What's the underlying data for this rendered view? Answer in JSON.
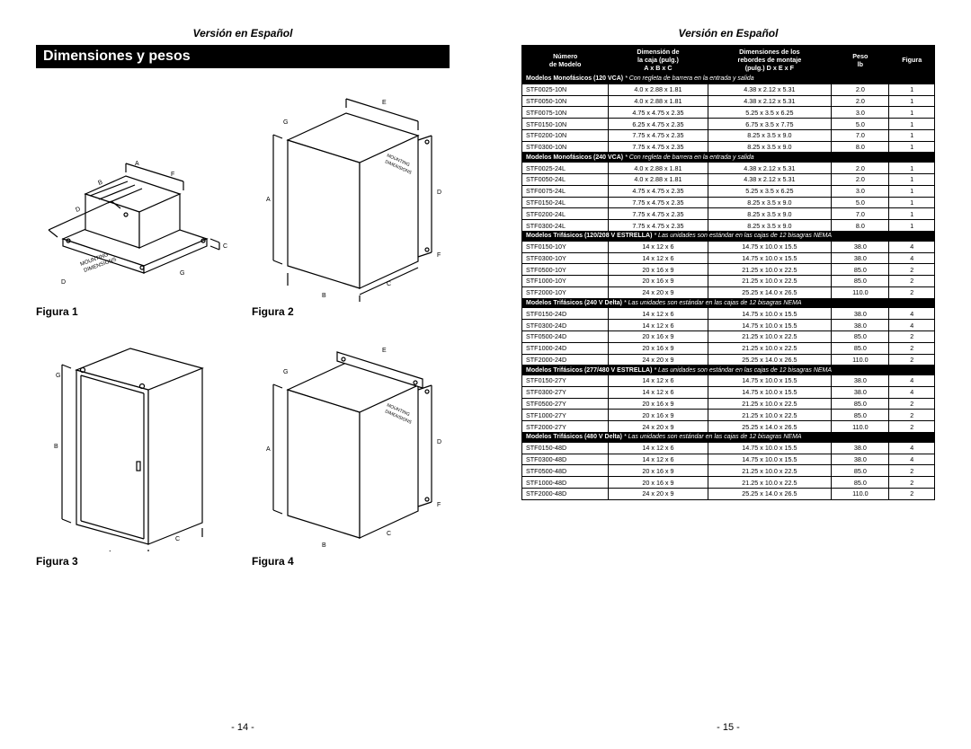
{
  "version_header": "Versión en Español",
  "title_bar": "Dimensiones y pesos",
  "page_left_num": "- 14 -",
  "page_right_num": "- 15 -",
  "figures": {
    "f1": {
      "label": "Figura 1"
    },
    "f2": {
      "label": "Figura 2"
    },
    "f3": {
      "label": "Figura 3"
    },
    "f4": {
      "label": "Figura 4"
    }
  },
  "table": {
    "headers": {
      "model": "Número\nde Modelo",
      "box": "Dimensión de\nla caja (pulg.)\nA x B x C",
      "mount": "Dimensiones de los\nrebordes de montaje\n(pulg.) D x E x F",
      "weight": "Peso\nlb",
      "fig": "Figura"
    },
    "col_widths_pct": [
      21,
      24,
      30,
      14,
      11
    ],
    "header_bg": "#000000",
    "header_fg": "#ffffff",
    "cell_border": "#000000",
    "font_size_pt": 7.2,
    "sections": [
      {
        "title": "Modelos Monofásicos (120 VCA)",
        "note": "* Con regleta de barrera en la entrada y salida",
        "rows": [
          [
            "STF0025-10N",
            "4.0 x 2.88 x 1.81",
            "4.38 x 2.12 x 5.31",
            "2.0",
            "1"
          ],
          [
            "STF0050-10N",
            "4.0 x 2.88 x 1.81",
            "4.38 x 2.12 x 5.31",
            "2.0",
            "1"
          ],
          [
            "STF0075-10N",
            "4.75 x 4.75 x 2.35",
            "5.25 x 3.5 x 6.25",
            "3.0",
            "1"
          ],
          [
            "STF0150-10N",
            "6.25 x 4.75 x 2.35",
            "6.75 x 3.5 x 7.75",
            "5.0",
            "1"
          ],
          [
            "STF0200-10N",
            "7.75 x 4.75 x 2.35",
            "8.25 x 3.5 x 9.0",
            "7.0",
            "1"
          ],
          [
            "STF0300-10N",
            "7.75 x 4.75 x 2.35",
            "8.25 x 3.5 x 9.0",
            "8.0",
            "1"
          ]
        ]
      },
      {
        "title": "Modelos Monofásicos (240 VCA)",
        "note": "* Con regleta de barrera en la entrada y salida",
        "rows": [
          [
            "STF0025-24L",
            "4.0 x 2.88 x 1.81",
            "4.38 x 2.12 x 5.31",
            "2.0",
            "1"
          ],
          [
            "STF0050-24L",
            "4.0 x 2.88 x 1.81",
            "4.38 x 2.12 x 5.31",
            "2.0",
            "1"
          ],
          [
            "STF0075-24L",
            "4.75 x 4.75 x 2.35",
            "5.25 x 3.5 x 6.25",
            "3.0",
            "1"
          ],
          [
            "STF0150-24L",
            "7.75 x 4.75 x 2.35",
            "8.25 x 3.5 x 9.0",
            "5.0",
            "1"
          ],
          [
            "STF0200-24L",
            "7.75 x 4.75 x 2.35",
            "8.25 x 3.5 x 9.0",
            "7.0",
            "1"
          ],
          [
            "STF0300-24L",
            "7.75 x 4.75 x 2.35",
            "8.25 x 3.5 x 9.0",
            "8.0",
            "1"
          ]
        ]
      },
      {
        "title": "Modelos Trifásicos (120/208 V ESTRELLA)",
        "note": "* Las unidades son estándar en las cajas de 12 bisagras NEMA",
        "rows": [
          [
            "STF0150-10Y",
            "14 x 12 x 6",
            "14.75 x 10.0 x 15.5",
            "38.0",
            "4"
          ],
          [
            "STF0300-10Y",
            "14 x 12 x 6",
            "14.75 x 10.0 x 15.5",
            "38.0",
            "4"
          ],
          [
            "STF0500-10Y",
            "20 x 16 x 9",
            "21.25 x 10.0 x 22.5",
            "85.0",
            "2"
          ],
          [
            "STF1000-10Y",
            "20 x 16 x 9",
            "21.25 x 10.0 x 22.5",
            "85.0",
            "2"
          ],
          [
            "STF2000-10Y",
            "24 x 20 x 9",
            "25.25 x 14.0 x 26.5",
            "110.0",
            "2"
          ]
        ]
      },
      {
        "title": "Modelos Trifásicos (240 V Delta)",
        "note": "* Las unidades son estándar en las cajas de 12 bisagras NEMA",
        "rows": [
          [
            "STF0150-24D",
            "14 x 12 x 6",
            "14.75 x 10.0 x 15.5",
            "38.0",
            "4"
          ],
          [
            "STF0300-24D",
            "14 x 12 x 6",
            "14.75 x 10.0 x 15.5",
            "38.0",
            "4"
          ],
          [
            "STF0500-24D",
            "20 x 16 x 9",
            "21.25 x 10.0 x 22.5",
            "85.0",
            "2"
          ],
          [
            "STF1000-24D",
            "20 x 16 x 9",
            "21.25 x 10.0 x 22.5",
            "85.0",
            "2"
          ],
          [
            "STF2000-24D",
            "24 x 20 x 9",
            "25.25 x 14.0 x 26.5",
            "110.0",
            "2"
          ]
        ]
      },
      {
        "title": "Modelos Trifásicos (277/480 V ESTRELLA)",
        "note": "* Las unidades son estándar en las cajas de 12 bisagras NEMA",
        "rows": [
          [
            "STF0150-27Y",
            "14 x 12 x 6",
            "14.75 x 10.0 x 15.5",
            "38.0",
            "4"
          ],
          [
            "STF0300-27Y",
            "14 x 12 x 6",
            "14.75 x 10.0 x 15.5",
            "38.0",
            "4"
          ],
          [
            "STF0500-27Y",
            "20 x 16 x 9",
            "21.25 x 10.0 x 22.5",
            "85.0",
            "2"
          ],
          [
            "STF1000-27Y",
            "20 x 16 x 9",
            "21.25 x 10.0 x 22.5",
            "85.0",
            "2"
          ],
          [
            "STF2000-27Y",
            "24 x 20 x 9",
            "25.25 x 14.0 x 26.5",
            "110.0",
            "2"
          ]
        ]
      },
      {
        "title": "Modelos Trifásicos (480 V Delta)",
        "note": "* Las unidades son estándar en las cajas de 12 bisagras NEMA",
        "rows": [
          [
            "STF0150-48D",
            "14 x 12 x 6",
            "14.75 x 10.0 x 15.5",
            "38.0",
            "4"
          ],
          [
            "STF0300-48D",
            "14 x 12 x 6",
            "14.75 x 10.0 x 15.5",
            "38.0",
            "4"
          ],
          [
            "STF0500-48D",
            "20 x 16 x 9",
            "21.25 x 10.0 x 22.5",
            "85.0",
            "2"
          ],
          [
            "STF1000-48D",
            "20 x 16 x 9",
            "21.25 x 10.0 x 22.5",
            "85.0",
            "2"
          ],
          [
            "STF2000-48D",
            "24 x 20 x 9",
            "25.25 x 14.0 x 26.5",
            "110.0",
            "2"
          ]
        ]
      }
    ]
  },
  "diagram_style": {
    "stroke": "#000000",
    "stroke_width": 1.2,
    "dim_label_font_size": 7,
    "mounting_label": "MOUNTING\nDIMENSIONS"
  }
}
